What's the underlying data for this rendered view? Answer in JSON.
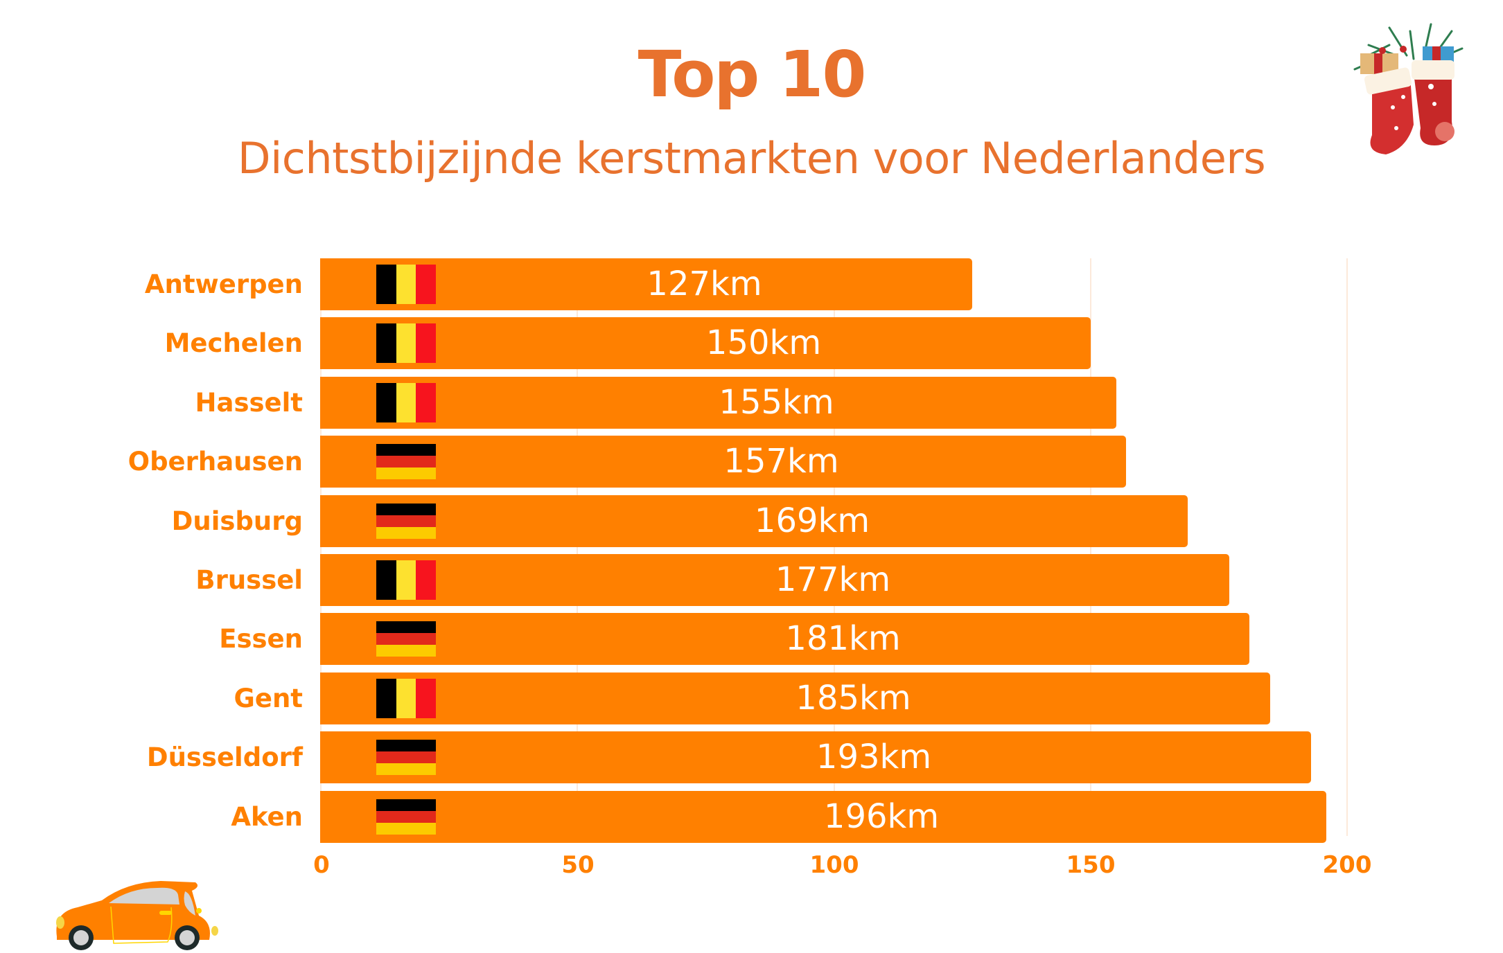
{
  "header": {
    "title": "Top 10",
    "subtitle": "Dichtstbijzijnde kerstmarkten voor Nederlanders"
  },
  "colors": {
    "title": "#E8722E",
    "bar": "#FF8000",
    "axis_text": "#FF8000",
    "gridline": "#FCE9DA",
    "value_text": "#FFFFFF",
    "flag_be": [
      "#000000",
      "#FDE12F",
      "#F7141E"
    ],
    "flag_de": [
      "#000000",
      "#E2291B",
      "#FCCB00"
    ]
  },
  "decorations": {
    "top_right": "christmas-stockings-illustration",
    "bottom_left": "orange-car-illustration"
  },
  "chart_data": {
    "type": "bar",
    "orientation": "horizontal",
    "title": "Top 10",
    "subtitle": "Dichtstbijzijnde kerstmarkten voor Nederlanders",
    "xlabel": "",
    "ylabel": "",
    "categories": [
      "Antwerpen",
      "Mechelen",
      "Hasselt",
      "Oberhausen",
      "Duisburg",
      "Brussel",
      "Essen",
      "Gent",
      "Düsseldorf",
      "Aken"
    ],
    "countries": [
      "BE",
      "BE",
      "BE",
      "DE",
      "DE",
      "BE",
      "DE",
      "BE",
      "DE",
      "DE"
    ],
    "values": [
      127,
      150,
      155,
      157,
      169,
      177,
      181,
      185,
      193,
      196
    ],
    "value_labels": [
      "127km",
      "150km",
      "155km",
      "157km",
      "169km",
      "177km",
      "181km",
      "185km",
      "193km",
      "196km"
    ],
    "unit": "km",
    "xlim": [
      0,
      200
    ],
    "xticks": [
      "0",
      "50",
      "100",
      "150",
      "200"
    ],
    "grid": true,
    "legend": null
  }
}
